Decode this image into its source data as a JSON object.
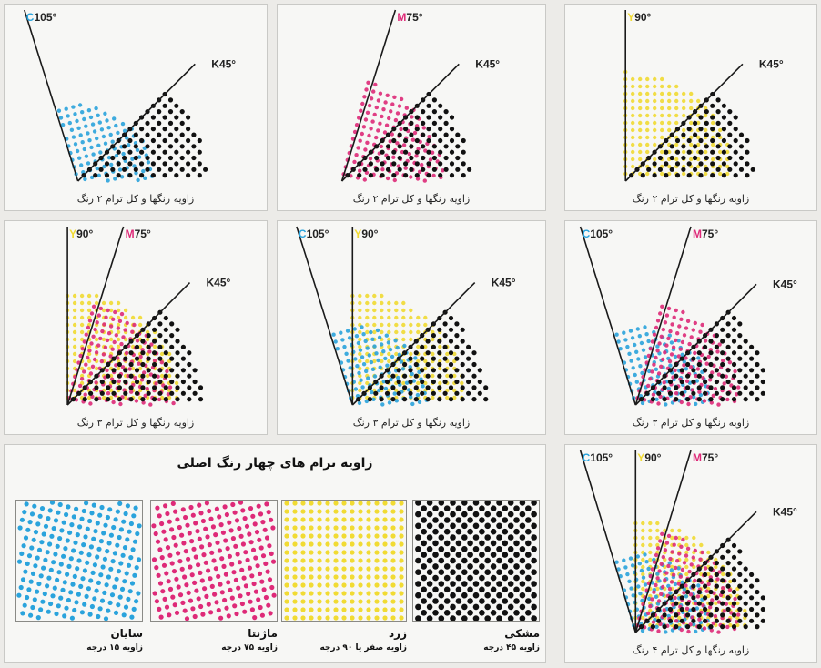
{
  "colors": {
    "cyan": "#2aa3dc",
    "magenta": "#de2a78",
    "yellow": "#f1db33",
    "black": "#111111",
    "line": "#1a1a1a"
  },
  "diagrams": [
    {
      "labels": {
        "C": "105°",
        "K": "K45°"
      },
      "caption": "زاویه رنگها و کل ترام ۲ رنگ"
    },
    {
      "labels": {
        "M": "75°",
        "K": "K45°"
      },
      "caption": "زاویه رنگها و کل ترام ۲ رنگ"
    },
    {
      "labels": {
        "Y": "90°",
        "K": "K45°"
      },
      "caption": "زاویه رنگها و کل ترام ۲ رنگ"
    },
    {
      "labels": {
        "Y": "90°",
        "M": "75°",
        "K": "K45°"
      },
      "caption": "زاویه رنگها و کل ترام ۳ رنگ"
    },
    {
      "labels": {
        "C": "105°",
        "Y": "90°",
        "K": "K45°"
      },
      "caption": "زاویه رنگها و کل ترام ۳ رنگ"
    },
    {
      "labels": {
        "C": "105°",
        "M": "75°",
        "K": "K45°"
      },
      "caption": "زاویه رنگها و کل ترام ۳ رنگ"
    },
    {
      "labels": {
        "C": "105°",
        "Y": "90°",
        "M": "75°",
        "K": "K45°"
      },
      "caption": "زاویه رنگها و کل ترام ۴ رنگ"
    }
  ],
  "legend": {
    "title": "زاویه ترام های چهار رنگ اصلی",
    "swatches": [
      {
        "name": "سایان",
        "angle": "زاویه ۱۵ درجه"
      },
      {
        "name": "ماژنتا",
        "angle": "زاویه ۷۵ درجه"
      },
      {
        "name": "زرد",
        "angle": "زاویه صفر یا ۹۰ درجه"
      },
      {
        "name": "مشکی",
        "angle": "زاویه ۴۵ درجه"
      }
    ]
  }
}
